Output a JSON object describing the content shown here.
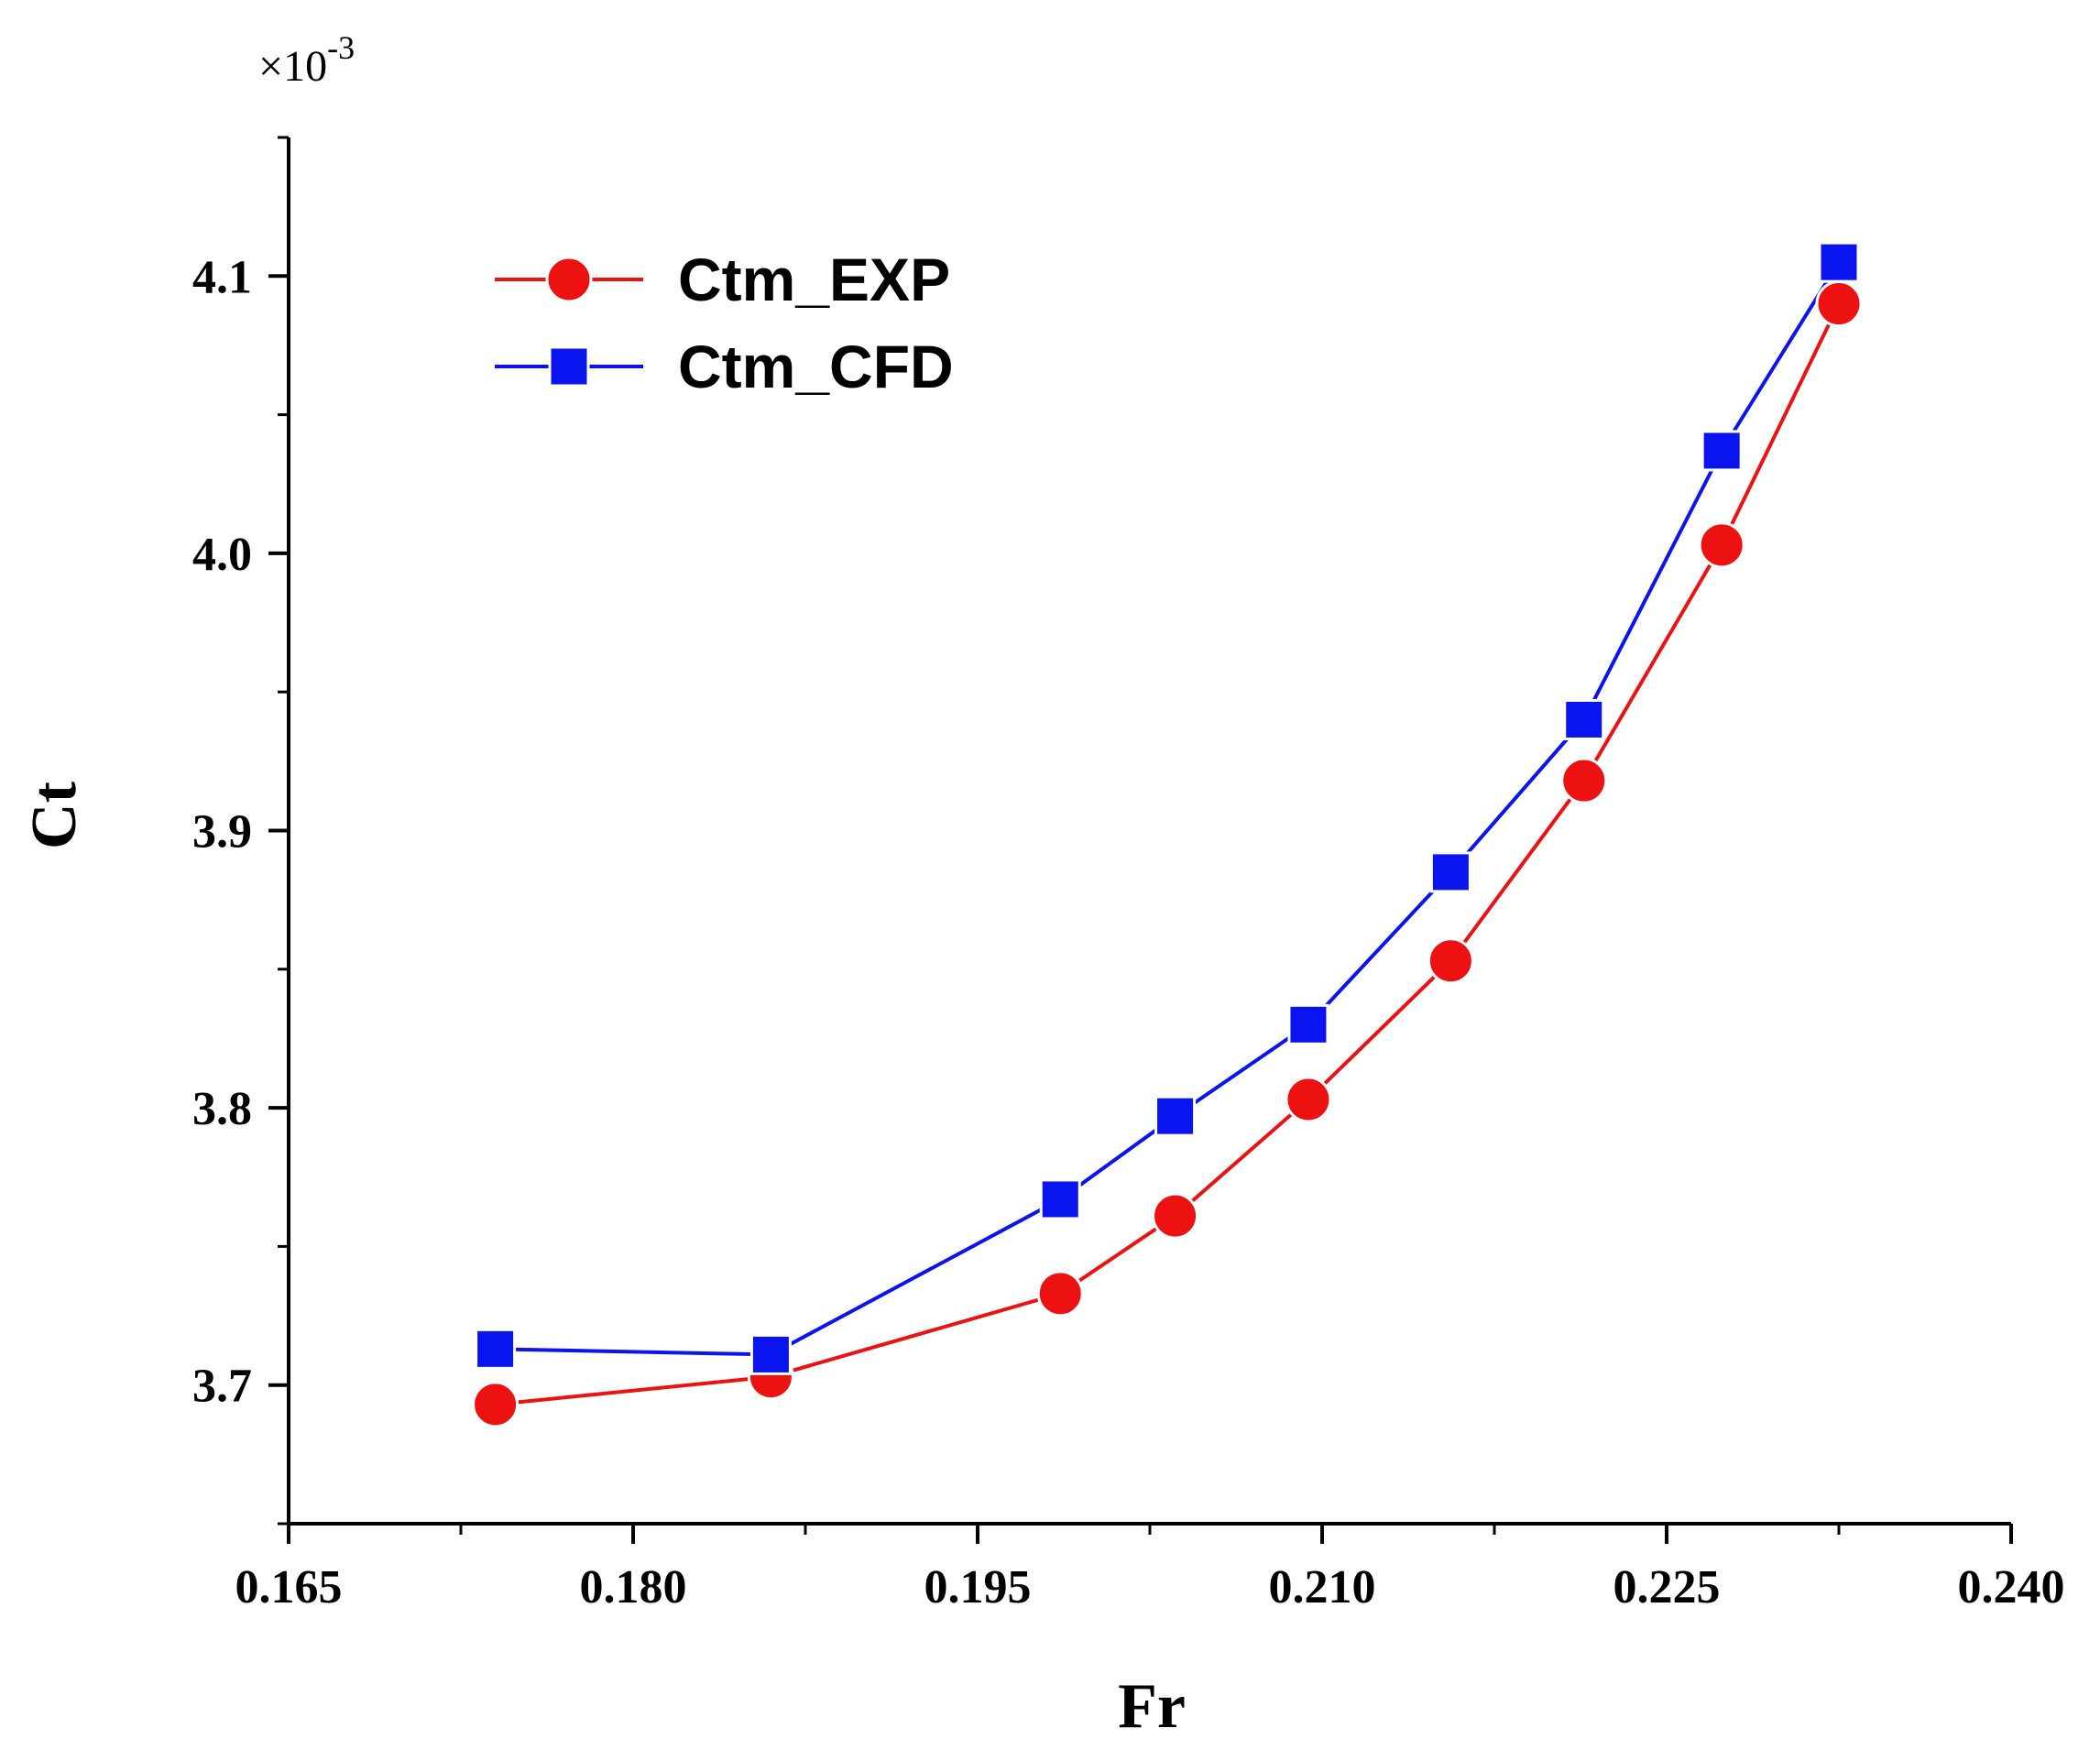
{
  "chart_data": {
    "type": "line",
    "title": "",
    "xlabel": "Fr",
    "ylabel": "Ct",
    "y_multiplier": {
      "base": "×10",
      "exponent": "-3"
    },
    "xlim": [
      0.165,
      0.24
    ],
    "ylim": [
      3.65,
      4.15
    ],
    "x_ticks": [
      0.165,
      0.18,
      0.195,
      0.21,
      0.225,
      0.24
    ],
    "x_tick_labels": [
      "0.165",
      "0.180",
      "0.195",
      "0.210",
      "0.225",
      "0.240"
    ],
    "x_minor_ticks": [
      0.1725,
      0.1875,
      0.2025,
      0.2175,
      0.2325
    ],
    "y_ticks": [
      3.7,
      3.8,
      3.9,
      4.0,
      4.1
    ],
    "y_tick_labels": [
      "3.7",
      "3.8",
      "3.9",
      "4.0",
      "4.1"
    ],
    "y_minor_ticks": [
      3.65,
      3.75,
      3.85,
      3.95,
      4.05,
      4.15
    ],
    "grid": false,
    "legend_position": "top-left",
    "x": [
      0.174,
      0.186,
      0.1986,
      0.2036,
      0.2094,
      0.2156,
      0.2214,
      0.2274,
      0.2325
    ],
    "series": [
      {
        "name": "Ctm_EXP",
        "color": "#ee1111",
        "marker": "circle",
        "values": [
          3.693,
          3.703,
          3.733,
          3.761,
          3.803,
          3.853,
          3.918,
          4.003,
          4.09
        ]
      },
      {
        "name": "Ctm_CFD",
        "color": "#0a14ee",
        "marker": "square",
        "values": [
          3.713,
          3.711,
          3.767,
          3.797,
          3.83,
          3.885,
          3.94,
          4.037,
          4.105
        ]
      }
    ]
  }
}
